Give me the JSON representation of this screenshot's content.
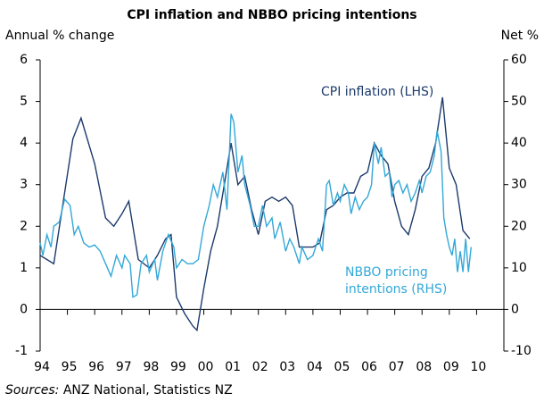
{
  "chart_data": {
    "type": "line",
    "title": "CPI inflation and NBBO pricing intentions",
    "y_label": "Annual % change",
    "y2_label": "Net %",
    "source_label": "Sources:",
    "source": "ANZ National, Statistics NZ",
    "xlim": [
      1994,
      2011
    ],
    "xticks": [
      {
        "value": 1994,
        "label": "94"
      },
      {
        "value": 1995,
        "label": "95"
      },
      {
        "value": 1996,
        "label": "96"
      },
      {
        "value": 1997,
        "label": "97"
      },
      {
        "value": 1998,
        "label": "98"
      },
      {
        "value": 1999,
        "label": "99"
      },
      {
        "value": 2000,
        "label": "00"
      },
      {
        "value": 2001,
        "label": "01"
      },
      {
        "value": 2002,
        "label": "02"
      },
      {
        "value": 2003,
        "label": "03"
      },
      {
        "value": 2004,
        "label": "04"
      },
      {
        "value": 2005,
        "label": "05"
      },
      {
        "value": 2006,
        "label": "06"
      },
      {
        "value": 2007,
        "label": "07"
      },
      {
        "value": 2008,
        "label": "08"
      },
      {
        "value": 2009,
        "label": "09"
      },
      {
        "value": 2010,
        "label": "10"
      }
    ],
    "ylim": [
      -1,
      6
    ],
    "yticks": [
      -1,
      0,
      1,
      2,
      3,
      4,
      5,
      6
    ],
    "y2lim": [
      -10,
      60
    ],
    "y2ticks": [
      -10,
      0,
      10,
      20,
      30,
      40,
      50,
      60
    ],
    "series": [
      {
        "name": "CPI inflation (LHS)",
        "color": "#1c3a6b",
        "axis": "y",
        "x": [
          1994.0,
          1994.5,
          1995.2,
          1995.5,
          1996.0,
          1996.4,
          1996.7,
          1997.0,
          1997.25,
          1997.6,
          1998.0,
          1998.3,
          1998.6,
          1998.8,
          1999.0,
          1999.3,
          1999.6,
          1999.75,
          2000.0,
          2000.25,
          2000.5,
          2000.75,
          2001.0,
          2001.25,
          2001.5,
          2001.75,
          2002.0,
          2002.25,
          2002.5,
          2002.75,
          2003.0,
          2003.25,
          2003.5,
          2003.75,
          2004.0,
          2004.25,
          2004.5,
          2004.75,
          2005.0,
          2005.25,
          2005.5,
          2005.75,
          2006.0,
          2006.25,
          2006.5,
          2006.75,
          2007.0,
          2007.25,
          2007.5,
          2007.75,
          2008.0,
          2008.25,
          2008.5,
          2008.75,
          2009.0,
          2009.25,
          2009.5,
          2009.75
        ],
        "values": [
          1.3,
          1.1,
          4.1,
          4.6,
          3.5,
          2.2,
          2.0,
          2.3,
          2.6,
          1.2,
          1.0,
          1.3,
          1.7,
          1.8,
          0.3,
          -0.1,
          -0.4,
          -0.5,
          0.5,
          1.4,
          2.0,
          3.0,
          4.0,
          3.0,
          3.2,
          2.4,
          1.8,
          2.6,
          2.7,
          2.6,
          2.7,
          2.5,
          1.5,
          1.5,
          1.5,
          1.6,
          2.4,
          2.5,
          2.7,
          2.8,
          2.8,
          3.2,
          3.3,
          4.0,
          3.7,
          3.5,
          2.6,
          2.0,
          1.8,
          2.4,
          3.2,
          3.4,
          4.0,
          5.1,
          3.4,
          3.0,
          1.9,
          1.7
        ]
      },
      {
        "name": "NBBO pricing intentions (RHS)",
        "color": "#33a8d8",
        "axis": "y2",
        "x": [
          1994.0,
          1994.1,
          1994.25,
          1994.4,
          1994.5,
          1994.7,
          1994.9,
          1995.1,
          1995.25,
          1995.4,
          1995.6,
          1995.8,
          1996.0,
          1996.2,
          1996.4,
          1996.6,
          1996.8,
          1997.0,
          1997.1,
          1997.3,
          1997.4,
          1997.55,
          1997.7,
          1997.9,
          1998.0,
          1998.2,
          1998.3,
          1998.5,
          1998.7,
          1998.9,
          1999.0,
          1999.2,
          1999.4,
          1999.6,
          1999.8,
          2000.0,
          2000.2,
          2000.35,
          2000.5,
          2000.7,
          2000.85,
          2001.0,
          2001.1,
          2001.25,
          2001.4,
          2001.5,
          2001.7,
          2001.85,
          2002.0,
          2002.15,
          2002.3,
          2002.5,
          2002.6,
          2002.8,
          2003.0,
          2003.15,
          2003.3,
          2003.5,
          2003.6,
          2003.8,
          2004.0,
          2004.2,
          2004.35,
          2004.5,
          2004.6,
          2004.75,
          2004.9,
          2005.0,
          2005.15,
          2005.3,
          2005.4,
          2005.55,
          2005.7,
          2005.85,
          2006.0,
          2006.15,
          2006.25,
          2006.4,
          2006.5,
          2006.65,
          2006.8,
          2006.9,
          2007.0,
          2007.15,
          2007.3,
          2007.45,
          2007.6,
          2007.75,
          2007.9,
          2008.0,
          2008.15,
          2008.3,
          2008.45,
          2008.55,
          2008.7,
          2008.8,
          2008.9,
          2009.0,
          2009.1,
          2009.2,
          2009.3,
          2009.4,
          2009.5,
          2009.6,
          2009.7,
          2009.8
        ],
        "values": [
          16,
          13,
          18,
          15,
          20,
          21,
          26.5,
          25,
          18,
          20,
          16,
          15,
          15.5,
          14,
          11,
          8,
          13,
          10,
          13,
          11,
          3,
          3.5,
          11,
          13,
          9,
          12,
          7,
          14,
          18,
          15,
          10,
          12,
          11,
          11,
          12,
          20,
          25,
          30,
          27,
          33,
          24,
          47,
          45,
          33,
          37,
          30,
          25,
          20,
          20,
          25,
          20,
          22,
          17,
          21,
          14,
          17,
          15,
          11,
          15,
          12,
          13,
          17,
          14,
          30,
          31,
          25,
          28,
          26,
          30,
          28,
          23,
          27,
          24,
          26,
          27,
          30,
          40,
          35,
          39,
          32,
          33,
          27,
          30,
          31,
          28,
          30,
          26,
          28,
          31,
          28,
          32,
          33,
          37,
          43,
          38,
          22,
          18,
          15,
          13,
          17,
          9,
          14,
          9,
          17,
          9,
          15
        ]
      }
    ]
  }
}
